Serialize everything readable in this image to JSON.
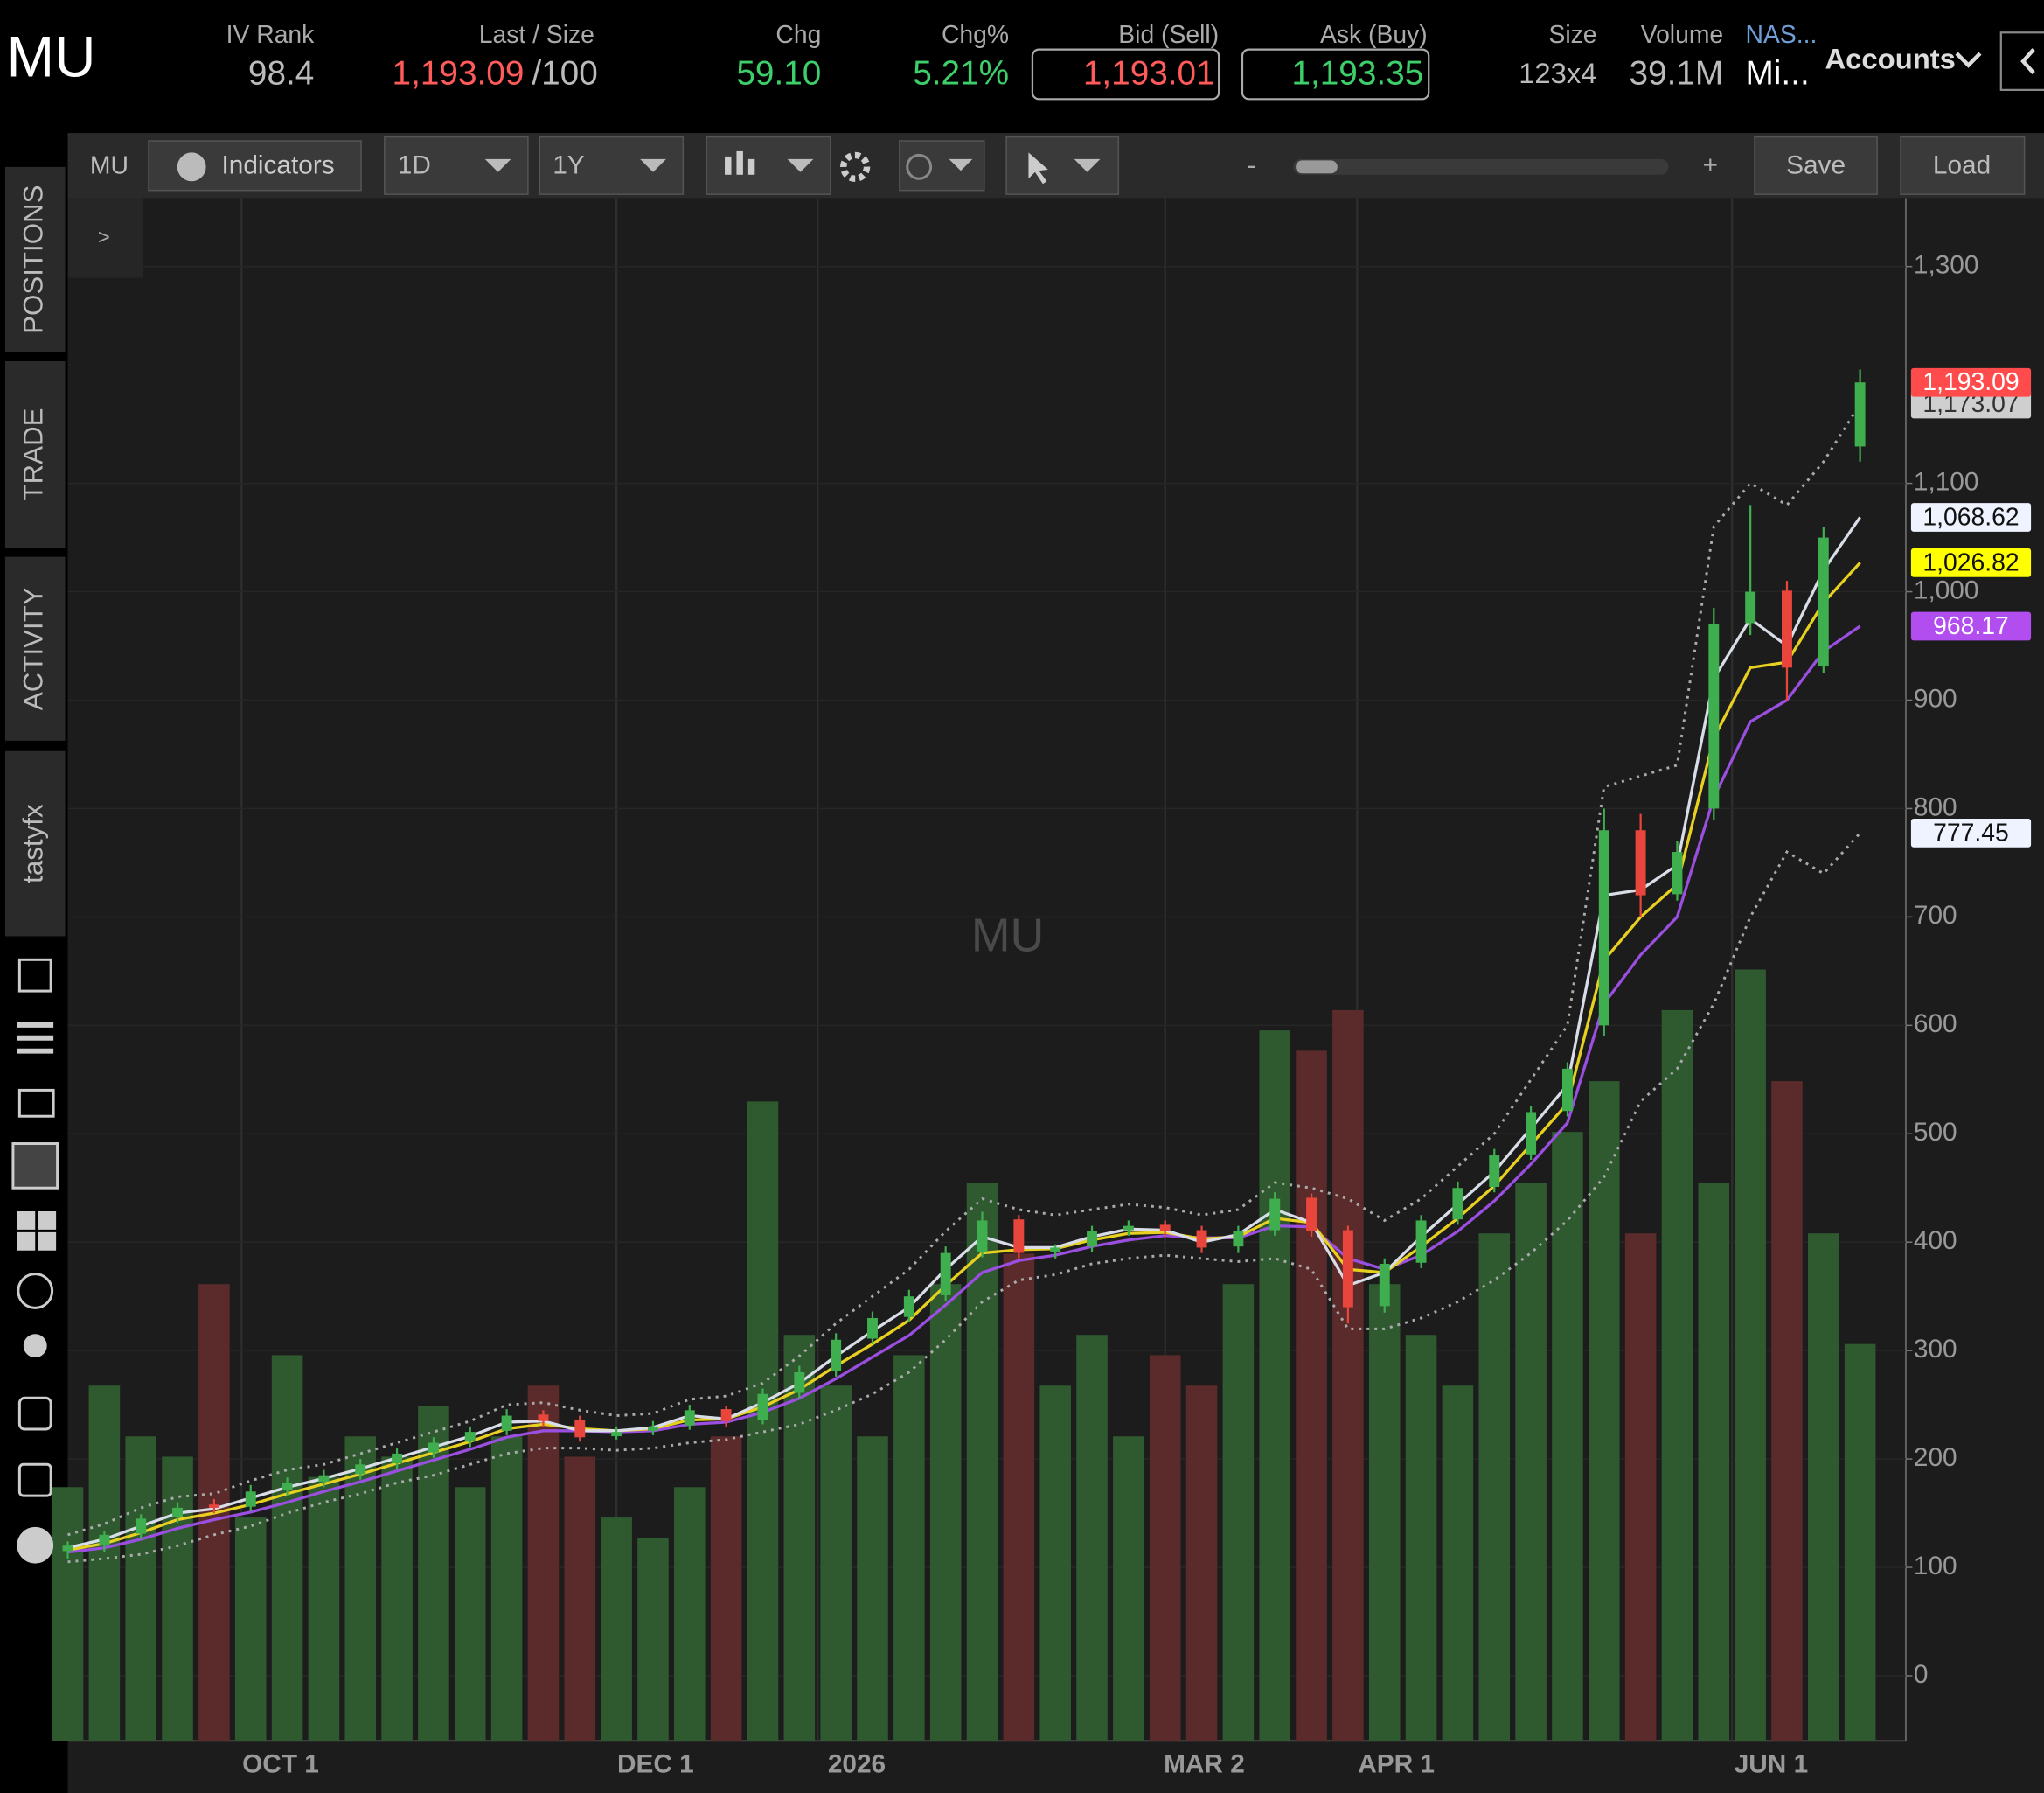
{
  "header": {
    "symbol": "MU",
    "fields": [
      {
        "label": "IV Rank",
        "value": "98.4"
      },
      {
        "label": "Last / Size",
        "value": "1,193.09",
        "size": "/100"
      },
      {
        "label": "Chg",
        "value": "59.10"
      },
      {
        "label": "Chg%",
        "value": "5.21%"
      },
      {
        "label": "Bid (Sell)",
        "value": "1,193.01"
      },
      {
        "label": "Ask (Buy)",
        "value": "1,193.35"
      },
      {
        "label": "Size",
        "value": "123x4"
      },
      {
        "label": "Volume",
        "value": "39.1M"
      },
      {
        "label": "NAS...",
        "value": "Mi..."
      }
    ],
    "accounts": "Accounts"
  },
  "toolbar": {
    "symbol": "MU",
    "indicators": "Indicators",
    "interval": "1D",
    "range": "1Y",
    "zoom_out": "-",
    "zoom_in": "+",
    "save": "Save",
    "load": "Load"
  },
  "sidebar": {
    "expand": ">",
    "tabs": [
      "POSITIONS",
      "TRADE",
      "ACTIVITY",
      "tastyfx"
    ]
  },
  "chart_data": {
    "type": "candlestick",
    "watermark": "MU",
    "x": [
      0,
      4,
      8,
      12,
      16,
      20,
      24,
      28,
      32,
      36,
      40,
      44,
      48,
      52,
      56,
      60,
      64,
      68,
      72,
      76,
      80,
      84,
      88,
      92,
      96,
      100,
      104,
      108,
      112,
      116,
      120,
      124,
      128,
      132,
      136,
      140,
      144,
      148,
      152,
      156,
      160,
      164,
      168,
      172,
      176,
      180,
      184,
      188,
      192,
      196
    ],
    "open": [
      115,
      120,
      131,
      146,
      158,
      156,
      171,
      179,
      186,
      196,
      206,
      216,
      226,
      241,
      236,
      221,
      226,
      231,
      246,
      236,
      261,
      281,
      311,
      331,
      351,
      391,
      421,
      391,
      396,
      411,
      416,
      411,
      396,
      411,
      441,
      411,
      341,
      381,
      421,
      451,
      481,
      521,
      600,
      780,
      721,
      800,
      971,
      1001,
      931,
      1134
    ],
    "high": [
      124,
      134,
      149,
      160,
      163,
      176,
      183,
      190,
      200,
      210,
      220,
      230,
      246,
      245,
      240,
      230,
      235,
      250,
      249,
      265,
      286,
      316,
      336,
      356,
      396,
      428,
      425,
      398,
      415,
      420,
      420,
      415,
      415,
      446,
      445,
      415,
      385,
      425,
      456,
      486,
      526,
      566,
      800,
      795,
      770,
      985,
      1080,
      1010,
      1060,
      1205
    ],
    "low": [
      108,
      114,
      126,
      141,
      150,
      152,
      166,
      174,
      181,
      191,
      201,
      211,
      222,
      230,
      216,
      218,
      222,
      227,
      230,
      232,
      256,
      276,
      306,
      326,
      346,
      386,
      385,
      385,
      391,
      406,
      405,
      390,
      390,
      406,
      405,
      325,
      335,
      376,
      416,
      446,
      476,
      516,
      590,
      700,
      715,
      790,
      960,
      900,
      925,
      1120
    ],
    "close": [
      120,
      130,
      145,
      155,
      155,
      170,
      178,
      185,
      195,
      205,
      215,
      225,
      240,
      235,
      220,
      225,
      230,
      245,
      235,
      260,
      280,
      310,
      330,
      350,
      390,
      420,
      390,
      395,
      410,
      415,
      410,
      395,
      410,
      440,
      410,
      340,
      380,
      420,
      450,
      480,
      520,
      560,
      780,
      720,
      760,
      970,
      1000,
      930,
      1050,
      1193.09
    ],
    "close_label": "1,193.09",
    "volume": [
      25,
      35,
      30,
      28,
      45,
      22,
      38,
      26,
      30,
      28,
      33,
      25,
      30,
      35,
      28,
      22,
      20,
      25,
      30,
      63,
      40,
      35,
      30,
      38,
      45,
      55,
      48,
      35,
      40,
      30,
      38,
      35,
      45,
      70,
      68,
      72,
      45,
      40,
      35,
      50,
      55,
      60,
      65,
      50,
      72,
      55,
      76,
      65,
      50,
      39.1
    ],
    "up_color": "#3fae4f",
    "down_color": "#e8453c",
    "up_volume_color": "#2f5a30",
    "down_volume_color": "#5a2b2a",
    "series": [
      {
        "color": "#aaaaaa",
        "style": "dotted",
        "label_color": "#cfcfcf",
        "label_text_color": "#333333",
        "last_label": "1,173.07",
        "values": [
          130,
          140,
          155,
          165,
          168,
          180,
          190,
          195,
          205,
          215,
          225,
          235,
          250,
          252,
          245,
          240,
          242,
          255,
          258,
          270,
          295,
          325,
          350,
          375,
          410,
          440,
          430,
          425,
          430,
          435,
          432,
          425,
          430,
          455,
          450,
          440,
          420,
          440,
          470,
          500,
          550,
          600,
          820,
          830,
          840,
          1060,
          1100,
          1080,
          1120,
          1173.07
        ]
      },
      {
        "color": "#aaaaaa",
        "style": "dotted",
        "label_color": "#eef3ff",
        "label_text_color": "#111111",
        "last_label": "777.45",
        "values": [
          105,
          108,
          112,
          120,
          130,
          138,
          150,
          160,
          168,
          178,
          185,
          195,
          205,
          210,
          210,
          208,
          210,
          215,
          218,
          225,
          232,
          245,
          260,
          280,
          310,
          345,
          365,
          370,
          380,
          385,
          388,
          385,
          382,
          385,
          375,
          320,
          320,
          330,
          345,
          365,
          390,
          420,
          460,
          530,
          560,
          620,
          700,
          760,
          740,
          777.45
        ]
      },
      {
        "color": "#9b4fe0",
        "style": "solid",
        "label_color": "#b24df0",
        "label_text_color": "#ffffff",
        "last_label": "968.17",
        "values": [
          114,
          118,
          126,
          136,
          144,
          151,
          160,
          170,
          179,
          189,
          199,
          209,
          220,
          226,
          226,
          225,
          226,
          232,
          234,
          243,
          256,
          274,
          294,
          314,
          342,
          372,
          383,
          388,
          396,
          402,
          406,
          404,
          404,
          415,
          414,
          385,
          375,
          388,
          410,
          438,
          472,
          510,
          620,
          665,
          700,
          810,
          880,
          900,
          945,
          968.17
        ]
      },
      {
        "color": "#e8d020",
        "style": "solid",
        "label_color": "#ffff00",
        "label_text_color": "#111111",
        "last_label": "1,026.82",
        "values": [
          116,
          122,
          132,
          144,
          150,
          158,
          168,
          177,
          186,
          196,
          206,
          216,
          228,
          232,
          228,
          226,
          228,
          236,
          237,
          248,
          264,
          286,
          306,
          328,
          360,
          390,
          393,
          394,
          402,
          408,
          409,
          403,
          405,
          422,
          418,
          375,
          372,
          396,
          422,
          452,
          490,
          528,
          660,
          700,
          730,
          865,
          930,
          935,
          990,
          1026.82
        ]
      },
      {
        "color": "#d8dde8",
        "style": "solid",
        "label_color": "#eef3ff",
        "label_text_color": "#111111",
        "last_label": "1,068.62",
        "values": [
          118,
          126,
          138,
          150,
          154,
          164,
          174,
          182,
          191,
          201,
          211,
          221,
          234,
          235,
          226,
          226,
          229,
          240,
          237,
          252,
          270,
          295,
          318,
          340,
          375,
          405,
          395,
          395,
          405,
          412,
          411,
          400,
          407,
          430,
          418,
          360,
          372,
          405,
          435,
          465,
          505,
          545,
          720,
          725,
          748,
          920,
          975,
          950,
          1020,
          1068.62
        ]
      }
    ],
    "xlim": [
      0,
      201
    ],
    "xticks": [
      {
        "value": 19,
        "label": "OCT 1"
      },
      {
        "value": 60,
        "label": "DEC 1"
      },
      {
        "value": 82,
        "label": "2026"
      },
      {
        "value": 120,
        "label": "MAR 2"
      },
      {
        "value": 141,
        "label": "APR 1"
      },
      {
        "value": 182,
        "label": "JUN 1"
      }
    ],
    "ylim": [
      -60,
      1363
    ],
    "yticks": [
      0,
      100,
      200,
      300,
      400,
      500,
      600,
      700,
      800,
      900,
      {
        "value": 1000,
        "label": "1,000"
      },
      {
        "value": 1100,
        "label": "1,100"
      },
      {
        "value": 1300,
        "label": "1,300"
      }
    ],
    "grid": true
  }
}
